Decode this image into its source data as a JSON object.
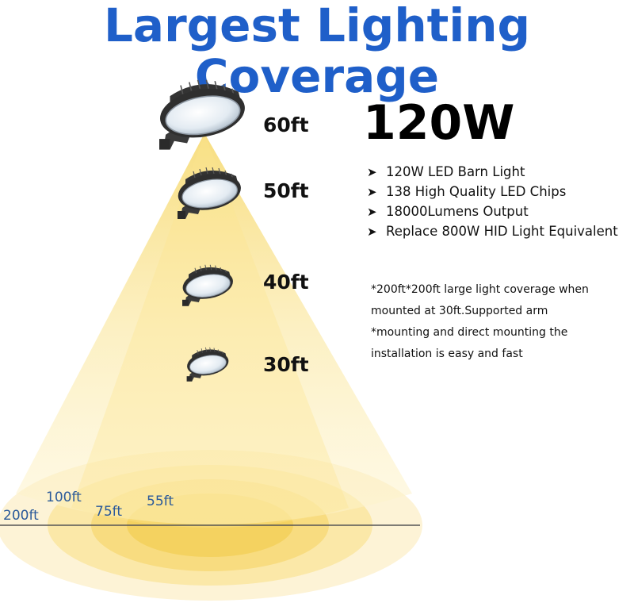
{
  "title": "Largest Lighting Coverage",
  "wattage": "120W",
  "mount_heights": [
    "60ft",
    "50ft",
    "40ft",
    "30ft"
  ],
  "features": [
    "120W LED Barn Light",
    "138 High Quality LED Chips",
    "18000Lumens Output",
    "Replace 800W HID Light Equivalent"
  ],
  "note_lines": [
    "*200ft*200ft large light coverage when",
    "mounted at 30ft.Supported arm",
    "*mounting and direct mounting the",
    "installation is easy and fast"
  ],
  "coverage_radii": [
    "200ft",
    "100ft",
    "75ft",
    "55ft"
  ],
  "colors": {
    "title": "#1f5fc9",
    "radius_label": "#2b5a9a",
    "light": "#f7df7a",
    "light_center": "#fbeaa0"
  },
  "icons": {
    "bullet": "arrow-bullet-icon",
    "fixture": "barn-light-fixture-icon"
  }
}
